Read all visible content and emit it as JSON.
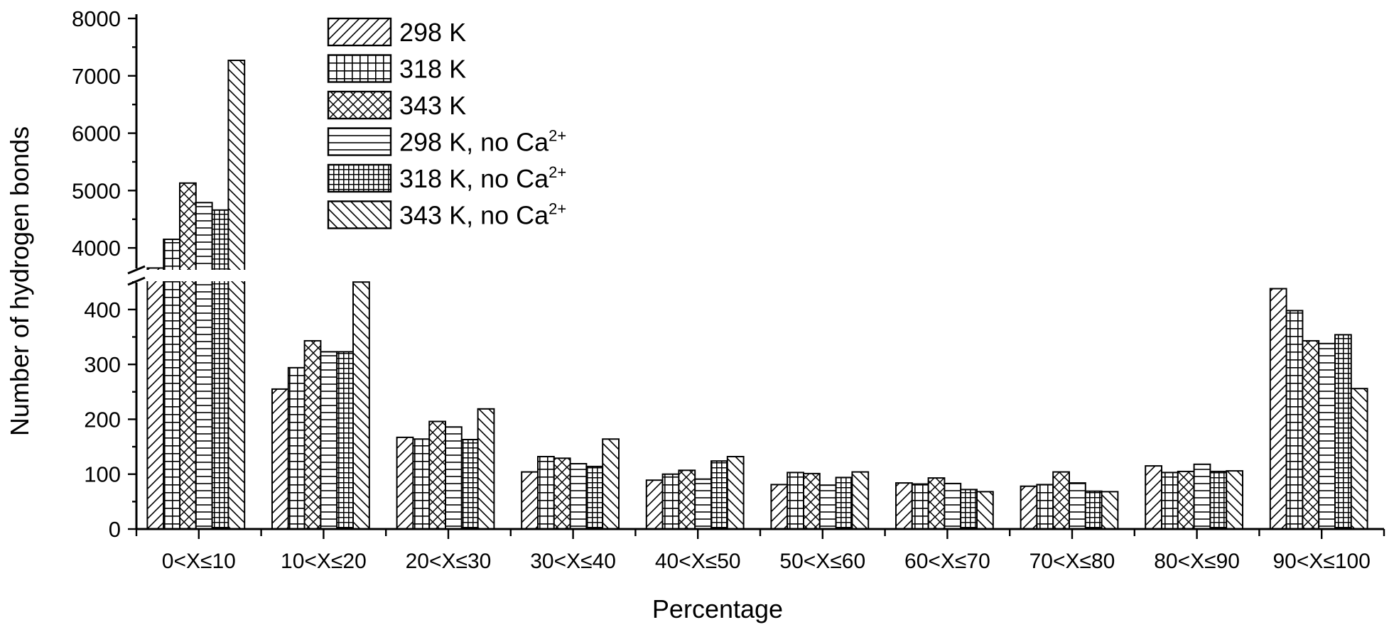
{
  "chart_data": {
    "type": "bar",
    "title": "",
    "xlabel": "Percentage",
    "ylabel": "Number of hydrogen bonds",
    "categories": [
      "0<X≤10",
      "10<X≤20",
      "20<X≤30",
      "30<X≤40",
      "40<X≤50",
      "50<X≤60",
      "60<X≤70",
      "70<X≤80",
      "80<X≤90",
      "90<X≤100"
    ],
    "y_axis_break": {
      "lower_range": [
        0,
        460
      ],
      "upper_range": [
        3500,
        8000
      ]
    },
    "yticks_lower": [
      0,
      100,
      200,
      300,
      400
    ],
    "yticks_upper": [
      4000,
      5000,
      6000,
      7000,
      8000
    ],
    "legend_position": "top-center",
    "grid": false,
    "series": [
      {
        "name": "298 K",
        "superscript": "",
        "pattern": "diag-right",
        "values": [
          3650,
          255,
          167,
          104,
          89,
          81,
          84,
          78,
          115,
          438
        ]
      },
      {
        "name": "318 K",
        "superscript": "",
        "pattern": "grid",
        "values": [
          4150,
          294,
          164,
          132,
          100,
          103,
          82,
          81,
          103,
          398
        ]
      },
      {
        "name": "343 K",
        "superscript": "",
        "pattern": "crosshatch",
        "values": [
          5130,
          343,
          196,
          129,
          107,
          101,
          93,
          104,
          105,
          343
        ]
      },
      {
        "name": "298 K, no Ca",
        "superscript": "2+",
        "pattern": "horizontal",
        "values": [
          4790,
          323,
          186,
          119,
          91,
          80,
          83,
          84,
          118,
          338
        ]
      },
      {
        "name": "318 K, no Ca",
        "superscript": "2+",
        "pattern": "fine-grid",
        "values": [
          4660,
          323,
          163,
          114,
          124,
          94,
          72,
          69,
          105,
          354
        ]
      },
      {
        "name": "343 K, no Ca",
        "superscript": "2+",
        "pattern": "diag-left",
        "values": [
          7270,
          450,
          219,
          164,
          132,
          104,
          68,
          68,
          106,
          256
        ]
      }
    ]
  }
}
